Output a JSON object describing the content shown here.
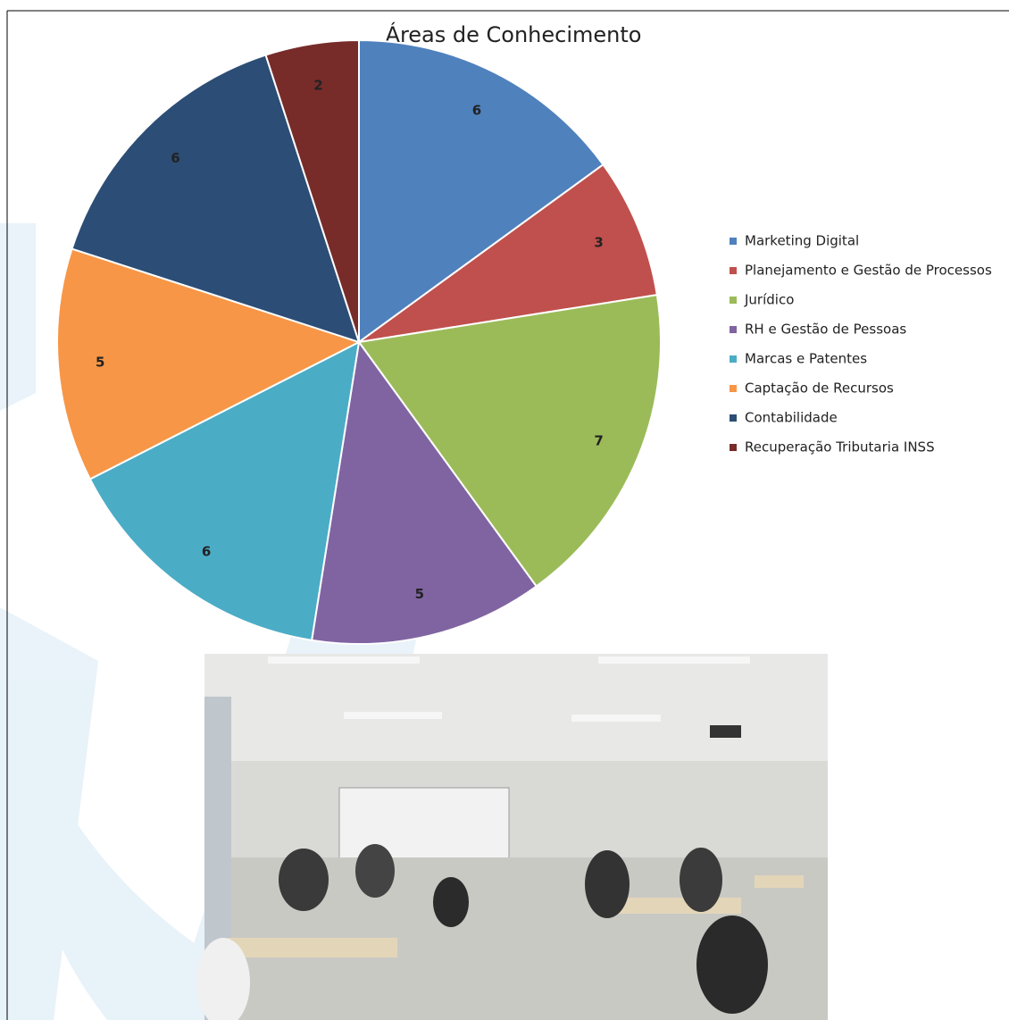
{
  "chart_data": {
    "type": "pie",
    "title": "Áreas de Conhecimento",
    "categories": [
      "Marketing Digital",
      "Planejamento e Gestão de Processos",
      "Jurídico",
      "RH e Gestão de Pessoas",
      "Marcas e Patentes",
      "Captação de Recursos",
      "Contabilidade",
      "Recuperação Tributaria INSS"
    ],
    "values": [
      6,
      3,
      7,
      5,
      6,
      5,
      6,
      2
    ],
    "colors": [
      "#4f81bd",
      "#c0504d",
      "#9bbb59",
      "#8064a2",
      "#4bacc6",
      "#f79646",
      "#2c4d75",
      "#772c2a"
    ],
    "legend": "right"
  }
}
